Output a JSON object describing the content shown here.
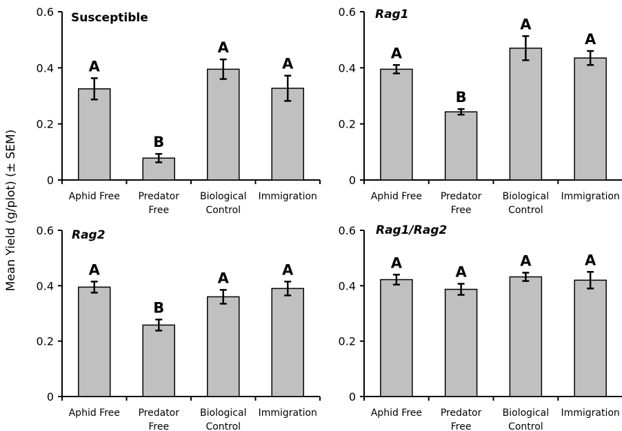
{
  "y_axis_label": "Mean Yield (g/plot) (± SEM)",
  "bar_color": "#c0c0c0",
  "chart_data": [
    {
      "type": "bar",
      "title": "Susceptible",
      "title_italic": false,
      "categories": [
        "Aphid Free",
        "Predator Free",
        "Biological Control",
        "Immigration"
      ],
      "values": [
        0.325,
        0.078,
        0.395,
        0.327
      ],
      "errors": [
        0.038,
        0.015,
        0.035,
        0.045
      ],
      "significance": [
        "A",
        "B",
        "A",
        "A"
      ],
      "ylim": [
        0,
        0.6
      ],
      "yticks": [
        "0",
        "0.2",
        "0.4",
        "0.6"
      ]
    },
    {
      "type": "bar",
      "title": "Rag1",
      "title_italic": true,
      "categories": [
        "Aphid Free",
        "Predator Free",
        "Biological Control",
        "Immigration"
      ],
      "values": [
        0.395,
        0.243,
        0.47,
        0.435
      ],
      "errors": [
        0.015,
        0.01,
        0.043,
        0.025
      ],
      "significance": [
        "A",
        "B",
        "A",
        "A"
      ],
      "ylim": [
        0,
        0.6
      ],
      "yticks": [
        "0",
        "0.2",
        "0.4",
        "0.6"
      ]
    },
    {
      "type": "bar",
      "title": "Rag2",
      "title_italic": true,
      "categories": [
        "Aphid Free",
        "Predator Free",
        "Biological Control",
        "Immigration"
      ],
      "values": [
        0.395,
        0.258,
        0.36,
        0.39
      ],
      "errors": [
        0.02,
        0.02,
        0.025,
        0.025
      ],
      "significance": [
        "A",
        "B",
        "A",
        "A"
      ],
      "ylim": [
        0,
        0.6
      ],
      "yticks": [
        "0",
        "0.2",
        "0.4",
        "0.6"
      ]
    },
    {
      "type": "bar",
      "title": "Rag1/Rag2",
      "title_italic": true,
      "categories": [
        "Aphid Free",
        "Predator Free",
        "Biological Control",
        "Immigration"
      ],
      "values": [
        0.422,
        0.387,
        0.432,
        0.42
      ],
      "errors": [
        0.018,
        0.02,
        0.015,
        0.03
      ],
      "significance": [
        "A",
        "A",
        "A",
        "A"
      ],
      "ylim": [
        0,
        0.6
      ],
      "yticks": [
        "0",
        "0.2",
        "0.4",
        "0.6"
      ]
    }
  ]
}
